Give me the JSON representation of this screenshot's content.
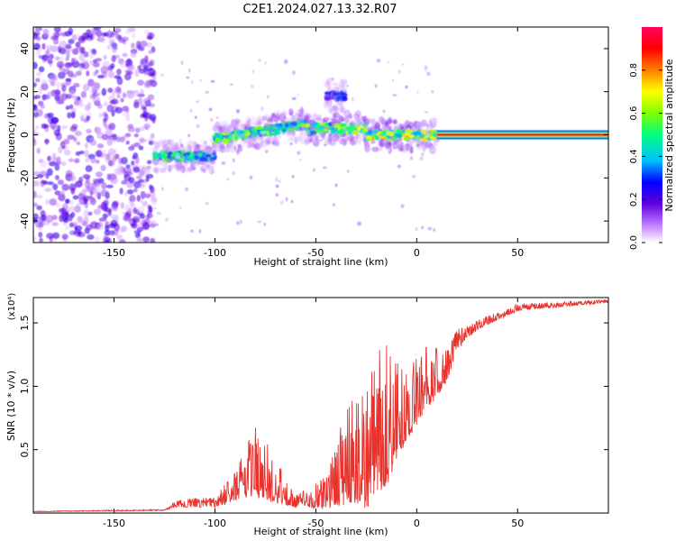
{
  "title": "C2E1.2024.027.13.32.R07",
  "chart_data": [
    {
      "type": "heatmap",
      "name": "spectrogram",
      "xlabel": "Height of straight line (km)",
      "ylabel": "Frequency (Hz)",
      "xlim": [
        -190,
        95
      ],
      "ylim": [
        -50,
        50
      ],
      "x_ticks": [
        -150,
        -100,
        -50,
        0,
        50
      ],
      "y_ticks": [
        -40,
        -20,
        0,
        20,
        40
      ],
      "colorbar": {
        "label": "Normalized spectral amplitude",
        "range": [
          0.0,
          1.0
        ],
        "ticks": [
          0.0,
          0.2,
          0.4,
          0.6,
          0.8
        ],
        "tick_labels": [
          "0.0",
          "0.2",
          "0.4",
          "0.6",
          "0.8"
        ],
        "colors": [
          "#ffffff",
          "#c080ff",
          "#6000e0",
          "#0000ff",
          "#00c0ff",
          "#00ff80",
          "#80ff00",
          "#ffff00",
          "#ff8000",
          "#ff0000",
          "#ff0060"
        ]
      },
      "description_regions": [
        {
          "x_range": [
            -190,
            -130
          ],
          "freq_range": [
            -50,
            50
          ],
          "amplitude": 0.15,
          "pattern": "noise"
        },
        {
          "x_range": [
            -130,
            -100
          ],
          "freq_center": -10,
          "amplitude": 0.45
        },
        {
          "x_range": [
            -100,
            -55
          ],
          "freq_center_start": -2,
          "freq_center_end": 5,
          "amplitude": 0.5
        },
        {
          "x_range": [
            -55,
            -25
          ],
          "freq_center": 3,
          "amplitude": 0.55
        },
        {
          "x_range": [
            -45,
            -35
          ],
          "freq_center": 18,
          "amplitude": 0.3
        },
        {
          "x_range": [
            -25,
            10
          ],
          "freq_center": 0,
          "amplitude": 0.6
        },
        {
          "x_range": [
            10,
            95
          ],
          "freq_center": 0,
          "amplitude": 0.95,
          "pattern": "steady-line"
        }
      ]
    },
    {
      "type": "line",
      "name": "snr",
      "xlabel": "Height of straight line (km)",
      "ylabel": "SNR (10 * v/v)",
      "y_multiplier_label": "(x10⁴)",
      "xlim": [
        -190,
        95
      ],
      "ylim": [
        0,
        1.7
      ],
      "x_ticks": [
        -150,
        -100,
        -50,
        0,
        50
      ],
      "y_ticks": [
        0.5,
        1.0,
        1.5
      ],
      "y_tick_labels": [
        "0.5",
        "1.0",
        "1.5"
      ],
      "color": "#e8322d",
      "envelope": [
        {
          "x": -190,
          "base": 0.01,
          "amp": 0.005
        },
        {
          "x": -125,
          "base": 0.02,
          "amp": 0.01
        },
        {
          "x": -120,
          "base": 0.05,
          "amp": 0.06
        },
        {
          "x": -100,
          "base": 0.05,
          "amp": 0.08
        },
        {
          "x": -90,
          "base": 0.1,
          "amp": 0.25
        },
        {
          "x": -80,
          "base": 0.15,
          "amp": 0.55
        },
        {
          "x": -70,
          "base": 0.1,
          "amp": 0.35
        },
        {
          "x": -60,
          "base": 0.05,
          "amp": 0.1
        },
        {
          "x": -45,
          "base": 0.05,
          "amp": 0.25
        },
        {
          "x": -35,
          "base": 0.1,
          "amp": 0.75
        },
        {
          "x": -25,
          "base": 0.1,
          "amp": 0.9
        },
        {
          "x": -15,
          "base": 0.3,
          "amp": 1.2
        },
        {
          "x": -5,
          "base": 0.6,
          "amp": 0.5
        },
        {
          "x": 5,
          "base": 0.85,
          "amp": 0.55
        },
        {
          "x": 15,
          "base": 1.05,
          "amp": 0.3
        },
        {
          "x": 20,
          "base": 1.3,
          "amp": 0.15
        },
        {
          "x": 30,
          "base": 1.45,
          "amp": 0.08
        },
        {
          "x": 50,
          "base": 1.6,
          "amp": 0.05
        },
        {
          "x": 95,
          "base": 1.66,
          "amp": 0.03
        }
      ]
    }
  ]
}
